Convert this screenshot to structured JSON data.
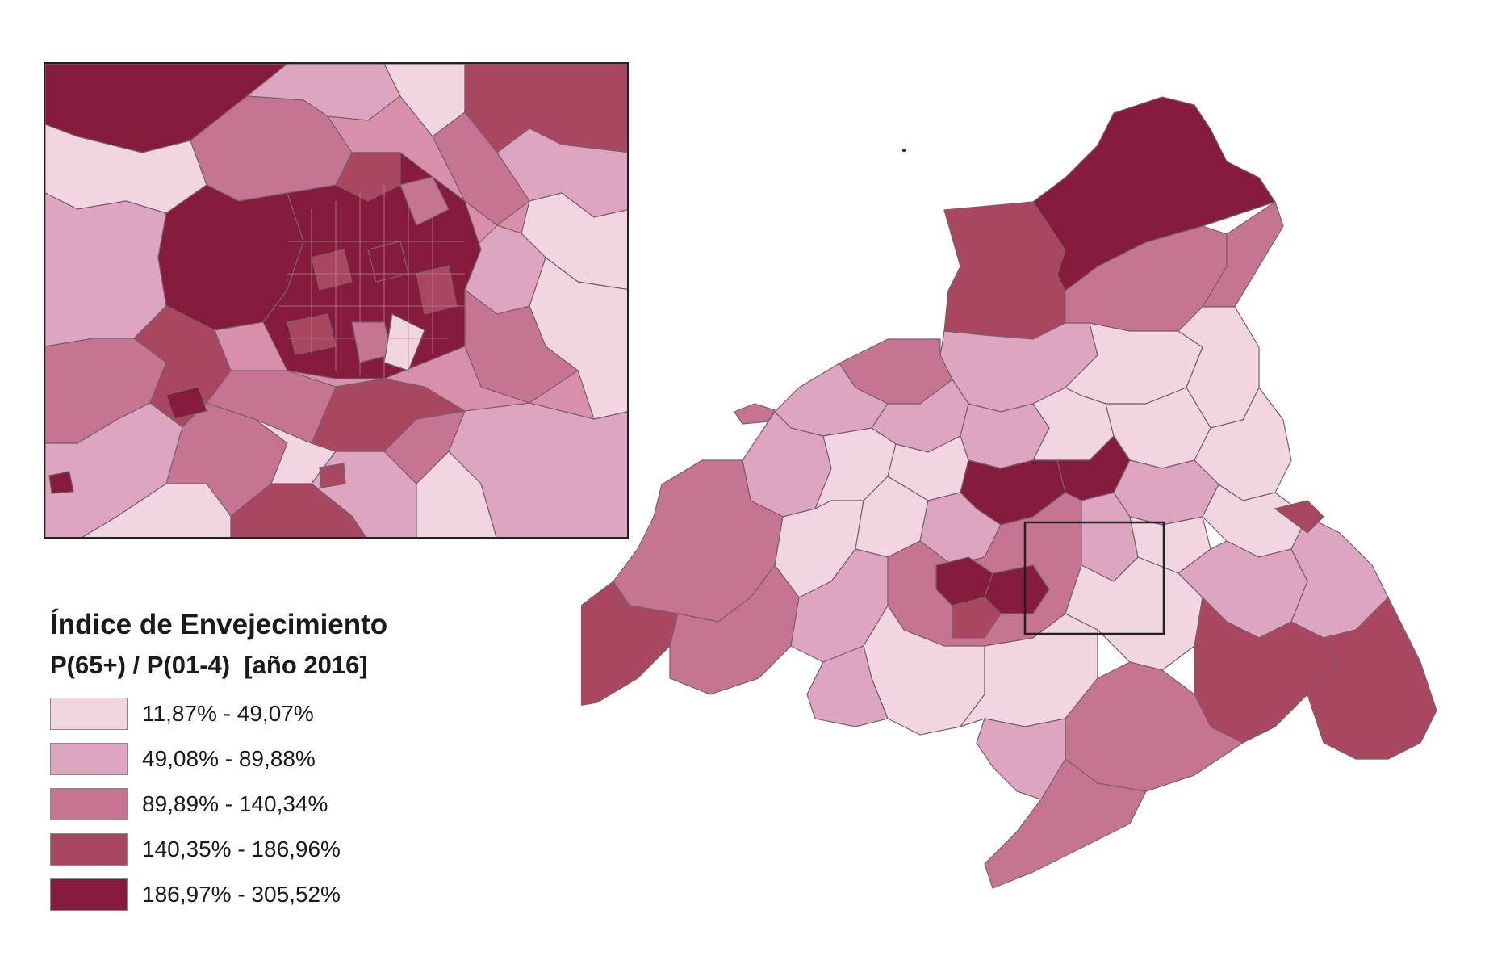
{
  "legend": {
    "title": "Índice de Envejecimiento",
    "subtitle": "P(65+) / P(01-4)  [año 2016]",
    "classes": [
      {
        "label": "11,87% - 49,07%",
        "color": "#f1d6e2"
      },
      {
        "label": "49,08% - 89,88%",
        "color": "#dda5bf"
      },
      {
        "label": "89,89% - 140,34%",
        "color": "#c57592"
      },
      {
        "label": "140,35% - 186,96%",
        "color": "#a8475f"
      },
      {
        "label": "186,97% - 305,52%",
        "color": "#861c3d"
      }
    ]
  },
  "colors": {
    "border": "#6a5a62",
    "inset_frame": "#222222"
  }
}
